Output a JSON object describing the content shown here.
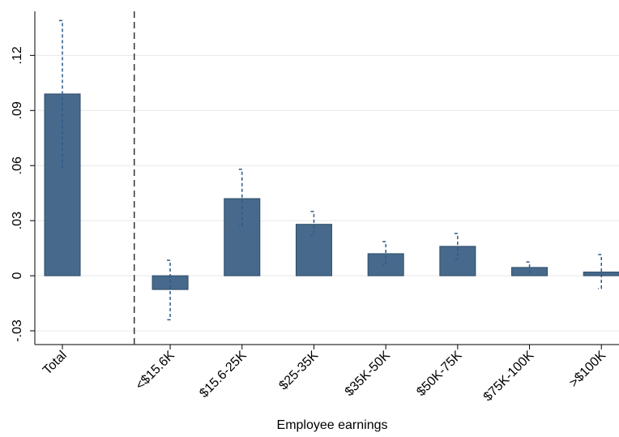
{
  "chart_data": {
    "type": "bar",
    "x_label": "Employee earnings",
    "categories": [
      "Total",
      "<$15.6K",
      "$15.6-25K",
      "$25-35K",
      "$35K-50K",
      "$50K-75K",
      "$75K-100K",
      ">$100K"
    ],
    "values": [
      0.099,
      -0.0075,
      0.042,
      0.028,
      0.012,
      0.016,
      0.0045,
      0.002
    ],
    "ci_low": [
      0.059,
      -0.024,
      0.027,
      0.022,
      0.0058,
      0.009,
      0.0015,
      -0.007
    ],
    "ci_high": [
      0.139,
      0.0084,
      0.058,
      0.035,
      0.0186,
      0.023,
      0.0075,
      0.0115
    ],
    "color": "#476a8c",
    "ylim": [
      -0.0375,
      0.144
    ],
    "yticks": [
      {
        "value": -0.03,
        "label": "-.03"
      },
      0,
      {
        "value": 0.03,
        "label": ".03"
      },
      {
        "value": 0.06,
        "label": ".06"
      },
      {
        "value": 0.09,
        "label": ".09"
      },
      {
        "value": 0.12,
        "label": ".12"
      }
    ],
    "grid": true
  }
}
